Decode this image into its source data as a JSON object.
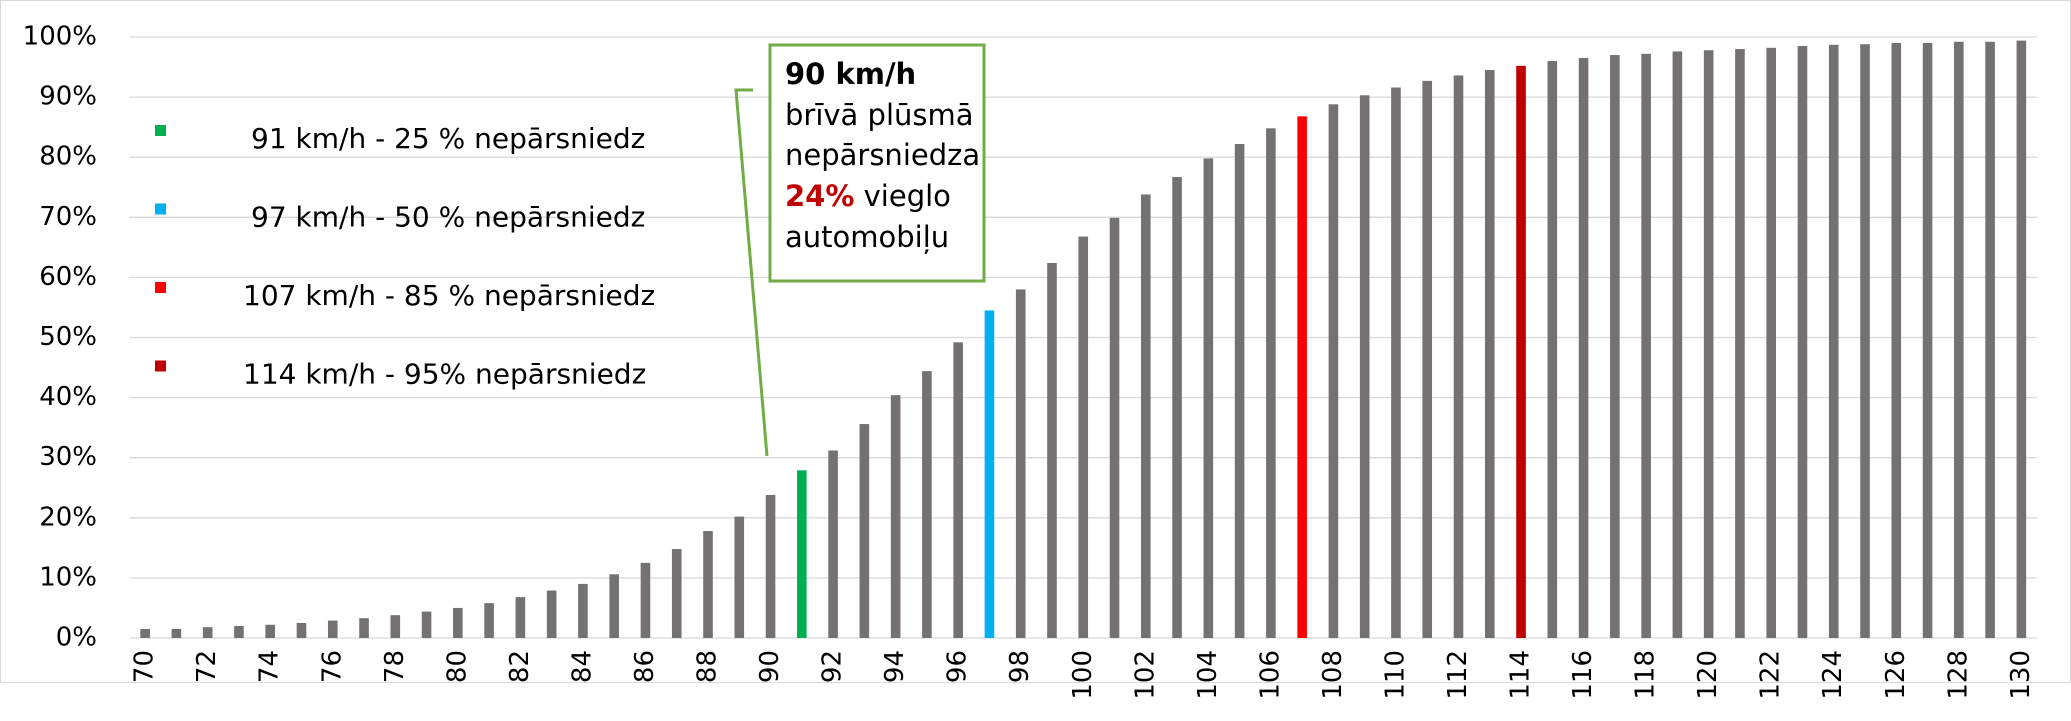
{
  "chart_data": {
    "type": "bar",
    "categories": [
      70,
      null,
      72,
      null,
      74,
      null,
      76,
      null,
      78,
      null,
      80,
      null,
      82,
      null,
      84,
      null,
      86,
      null,
      88,
      null,
      90,
      null,
      92,
      null,
      94,
      null,
      96,
      null,
      98,
      null,
      100,
      null,
      102,
      null,
      104,
      null,
      106,
      null,
      108,
      null,
      110,
      null,
      112,
      null,
      114,
      null,
      116,
      null,
      118,
      null,
      120,
      null,
      122,
      null,
      124,
      null,
      126,
      null,
      128,
      null,
      130
    ],
    "values": [
      1.5,
      1.5,
      1.8,
      2,
      2.2,
      2.5,
      2.9,
      3.3,
      3.8,
      4.4,
      5,
      5.8,
      6.8,
      7.9,
      9,
      10.6,
      12.5,
      14.8,
      17.8,
      20.2,
      23.8,
      27.9,
      31.2,
      35.6,
      40.4,
      44.4,
      49.2,
      54.5,
      58,
      62.4,
      66.8,
      69.9,
      73.8,
      76.7,
      79.8,
      82.2,
      84.8,
      86.8,
      88.8,
      90.3,
      91.6,
      92.7,
      93.6,
      94.5,
      95.2,
      96,
      96.5,
      97,
      97.2,
      97.6,
      97.8,
      98,
      98.2,
      98.5,
      98.7,
      98.8,
      99,
      99,
      99.2,
      99.2,
      99.4
    ],
    "colors": [
      "#767171",
      "#767171",
      "#767171",
      "#767171",
      "#767171",
      "#767171",
      "#767171",
      "#767171",
      "#767171",
      "#767171",
      "#767171",
      "#767171",
      "#767171",
      "#767171",
      "#767171",
      "#767171",
      "#767171",
      "#767171",
      "#767171",
      "#767171",
      "#767171",
      "#00b050",
      "#767171",
      "#767171",
      "#767171",
      "#767171",
      "#767171",
      "#00b0f0",
      "#767171",
      "#767171",
      "#767171",
      "#767171",
      "#767171",
      "#767171",
      "#767171",
      "#767171",
      "#767171",
      "#ff0000",
      "#767171",
      "#767171",
      "#767171",
      "#767171",
      "#767171",
      "#767171",
      "#c00000",
      "#767171",
      "#767171",
      "#767171",
      "#767171",
      "#767171",
      "#767171",
      "#767171",
      "#767171",
      "#767171",
      "#767171",
      "#767171",
      "#767171",
      "#767171",
      "#767171",
      "#767171",
      "#767171"
    ],
    "ylim": [
      0,
      100
    ],
    "yticks": [
      {
        "value": 0,
        "label": "0%"
      },
      {
        "value": 10,
        "label": "10%"
      },
      {
        "value": 20,
        "label": "20%"
      },
      {
        "value": 30,
        "label": "30%"
      },
      {
        "value": 40,
        "label": "40%"
      },
      {
        "value": 50,
        "label": "50%"
      },
      {
        "value": 60,
        "label": "60%"
      },
      {
        "value": 70,
        "label": "70%"
      },
      {
        "value": 80,
        "label": "80%"
      },
      {
        "value": 90,
        "label": "90%"
      },
      {
        "value": 100,
        "label": "100%"
      }
    ],
    "grid": true,
    "legend": [
      {
        "label": "91 km/h - 25 % nepārsniedz",
        "color": "#00b050"
      },
      {
        "label": "97 km/h - 50 % nepārsniedz",
        "color": "#00b0f0"
      },
      {
        "label": "107 km/h - 85 % nepārsniedz",
        "color": "#ff0000"
      },
      {
        "label": "114 km/h - 95% nepārsniedz",
        "color": "#c00000"
      }
    ],
    "annotation": {
      "title": "90 km/h",
      "line1": "brīvā plūsmā",
      "line2": "nepārsniedza",
      "highlight": "24%",
      "rest": "vieglo",
      "line4": "automobiļu",
      "color": "#70ad47",
      "highlight_color": "#c00000"
    }
  }
}
